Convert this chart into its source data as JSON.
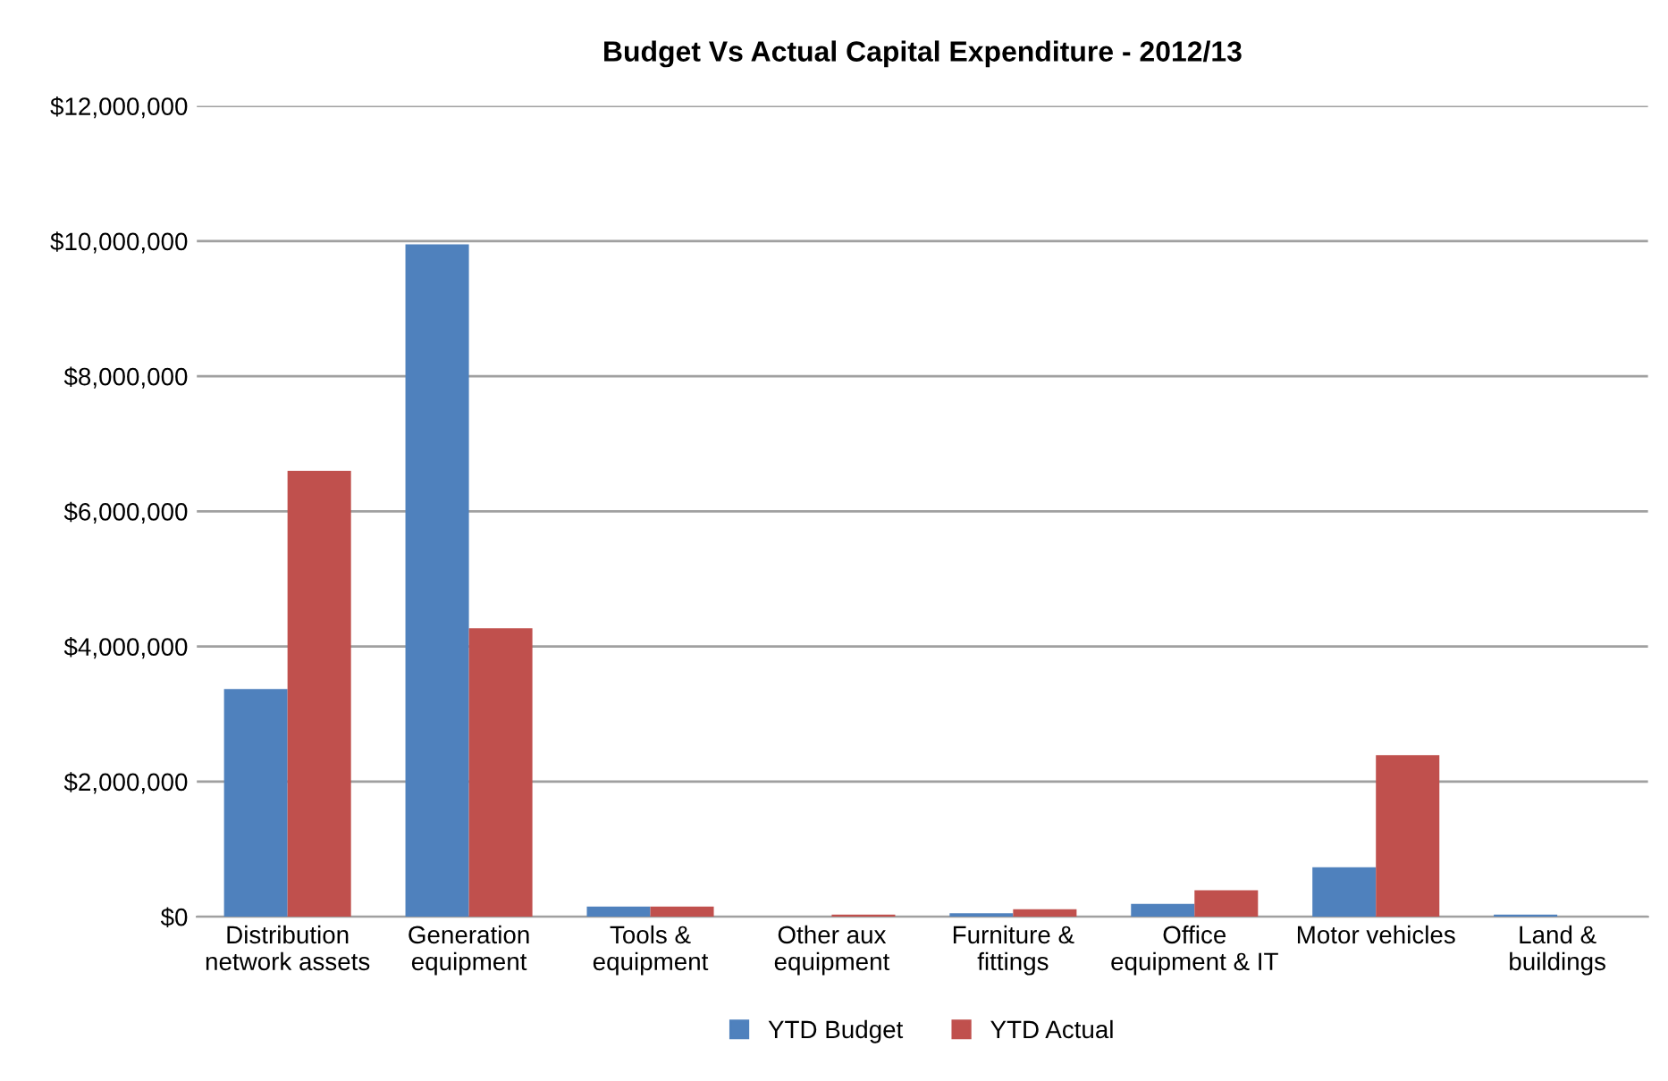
{
  "chart_data": {
    "type": "bar",
    "title": "Budget Vs Actual Capital Expenditure - 2012/13",
    "categories": [
      "Distribution\nnetwork assets",
      "Generation\nequipment",
      "Tools &\nequipment",
      "Other aux\nequipment",
      "Furniture &\nfittings",
      "Office\nequipment & IT",
      "Motor vehicles",
      "Land &\nbuildings"
    ],
    "series": [
      {
        "name": "YTD Budget",
        "color": "#4f81bd",
        "values": [
          3370000,
          9950000,
          150000,
          0,
          50000,
          190000,
          730000,
          30000
        ]
      },
      {
        "name": "YTD Actual",
        "color": "#c0504d",
        "values": [
          6600000,
          4270000,
          150000,
          30000,
          110000,
          390000,
          2390000,
          0
        ]
      }
    ],
    "ylim": [
      0,
      12000000
    ],
    "yticks": [
      {
        "value": 0,
        "label": "$0"
      },
      {
        "value": 2000000,
        "label": "$2,000,000"
      },
      {
        "value": 4000000,
        "label": "$4,000,000"
      },
      {
        "value": 6000000,
        "label": "$6,000,000"
      },
      {
        "value": 8000000,
        "label": "$8,000,000"
      },
      {
        "value": 10000000,
        "label": "$10,000,000"
      },
      {
        "value": 12000000,
        "label": "$12,000,000"
      }
    ],
    "grid": "y",
    "legend": "bottom"
  }
}
